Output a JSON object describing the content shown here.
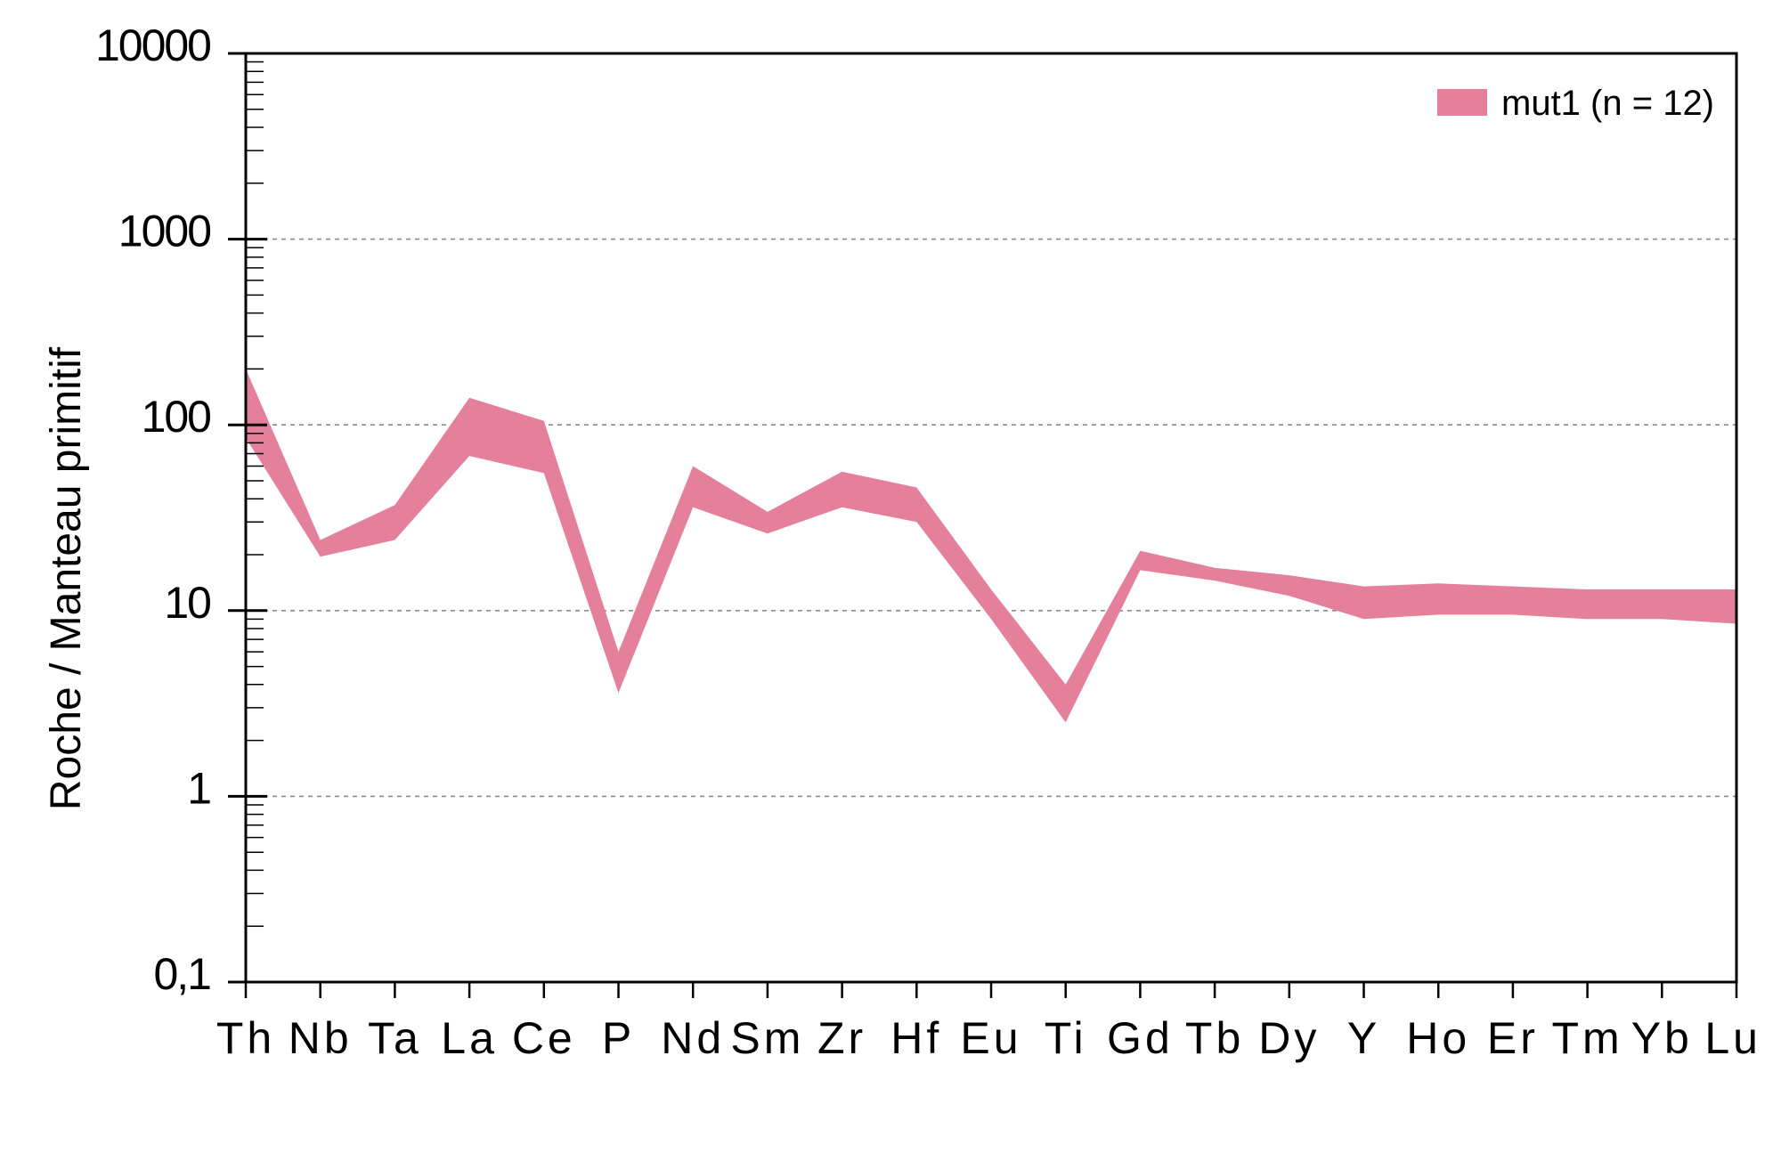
{
  "chart_data": {
    "type": "area",
    "scale": "log",
    "ylabel": "Roche / Manteau primitif",
    "ylim": [
      0.1,
      10000
    ],
    "yticks": [
      0.1,
      1,
      10,
      100,
      1000,
      10000
    ],
    "ytick_labels": [
      "0,1",
      "1",
      "10",
      "100",
      "1000",
      "10000"
    ],
    "grid": "horizontal-dotted",
    "categories": [
      "Th",
      "Nb",
      "Ta",
      "La",
      "Ce",
      "P",
      "Nd",
      "Sm",
      "Zr",
      "Hf",
      "Eu",
      "Ti",
      "Gd",
      "Tb",
      "Dy",
      "Y",
      "Ho",
      "Er",
      "Tm",
      "Yb",
      "Lu"
    ],
    "series": [
      {
        "name": "mut1 (n = 12)",
        "color": "#e5809c",
        "upper": [
          200,
          24,
          37,
          140,
          105,
          6,
          60,
          34,
          56,
          46,
          13,
          4,
          21,
          17,
          15.5,
          13.5,
          14,
          13.5,
          13,
          13,
          13
        ],
        "lower": [
          85,
          19.5,
          24,
          68,
          55,
          3.6,
          36,
          26,
          36,
          30,
          9,
          2.5,
          16.5,
          14.5,
          12,
          9,
          9.5,
          9.5,
          9,
          9,
          8.5
        ]
      }
    ],
    "legend": "top-right"
  }
}
